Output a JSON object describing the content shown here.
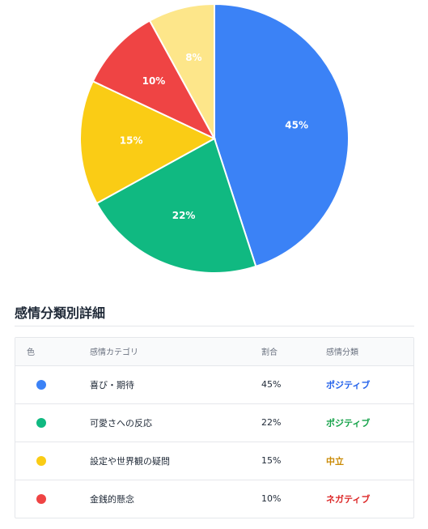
{
  "chart_data": {
    "type": "pie",
    "slices": [
      {
        "label": "喜び・期待",
        "value": 45,
        "display": "45%",
        "color": "#3b82f6"
      },
      {
        "label": "可愛さへの反応",
        "value": 22,
        "display": "22%",
        "color": "#10b981"
      },
      {
        "label": "設定や世界観の疑問",
        "value": 15,
        "display": "15%",
        "color": "#facc15"
      },
      {
        "label": "金銭的懸念",
        "value": 10,
        "display": "10%",
        "color": "#ef4444"
      },
      {
        "label": "",
        "value": 8,
        "display": "8%",
        "color": "#fde68a"
      }
    ]
  },
  "details": {
    "title": "感情分類別詳細",
    "headers": {
      "color": "色",
      "category": "感情カテゴリ",
      "ratio": "割合",
      "classification": "感情分類"
    },
    "rows": [
      {
        "color": "#3b82f6",
        "category": "喜び・期待",
        "ratio": "45%",
        "classification": "ポジティブ",
        "class_color": "#2563eb"
      },
      {
        "color": "#10b981",
        "category": "可愛さへの反応",
        "ratio": "22%",
        "classification": "ポジティブ",
        "class_color": "#16a34a"
      },
      {
        "color": "#facc15",
        "category": "設定や世界観の疑問",
        "ratio": "15%",
        "classification": "中立",
        "class_color": "#ca8a04"
      },
      {
        "color": "#ef4444",
        "category": "金銭的懸念",
        "ratio": "10%",
        "classification": "ネガティブ",
        "class_color": "#dc2626"
      }
    ]
  }
}
